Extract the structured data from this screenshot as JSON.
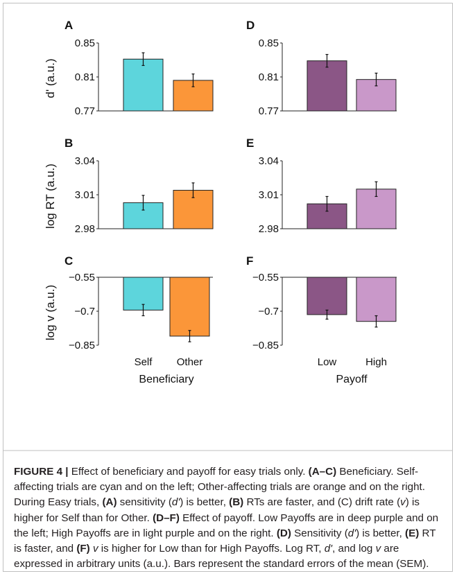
{
  "chart_data": [
    {
      "panel": "A",
      "type": "bar",
      "ylabel": "d' (a.u.)",
      "yticks": [
        "0.85",
        "0.81",
        "0.77"
      ],
      "ylim": [
        0.77,
        0.85
      ],
      "categories": [
        "Self",
        "Other"
      ],
      "values": [
        0.831,
        0.806
      ],
      "errors": [
        0.0075,
        0.0075
      ],
      "colors": [
        "#5dd5dc",
        "#fb9639"
      ]
    },
    {
      "panel": "B",
      "type": "bar",
      "ylabel": "log RT (a.u.)",
      "yticks": [
        "3.04",
        "3.01",
        "2.98"
      ],
      "ylim": [
        2.98,
        3.04
      ],
      "categories": [
        "Self",
        "Other"
      ],
      "values": [
        3.003,
        3.014
      ],
      "errors": [
        0.0065,
        0.0065
      ],
      "colors": [
        "#5dd5dc",
        "#fb9639"
      ]
    },
    {
      "panel": "C",
      "type": "bar",
      "ylabel": "log v (a.u.)",
      "yticks": [
        "−0.55",
        "−0.7",
        "−0.85"
      ],
      "ylim": [
        -0.85,
        -0.55
      ],
      "categories": [
        "Self",
        "Other"
      ],
      "values": [
        -0.695,
        -0.81
      ],
      "errors": [
        0.025,
        0.025
      ],
      "colors": [
        "#5dd5dc",
        "#fb9639"
      ],
      "xticklabels": [
        "Self",
        "Other"
      ],
      "xlabel": "Beneficiary"
    },
    {
      "panel": "D",
      "type": "bar",
      "ylabel": "",
      "yticks": [
        "0.85",
        "0.81",
        "0.77"
      ],
      "ylim": [
        0.77,
        0.85
      ],
      "categories": [
        "Low",
        "High"
      ],
      "values": [
        0.829,
        0.807
      ],
      "errors": [
        0.0075,
        0.0075
      ],
      "colors": [
        "#8b5686",
        "#c998c9"
      ]
    },
    {
      "panel": "E",
      "type": "bar",
      "ylabel": "",
      "yticks": [
        "3.04",
        "3.01",
        "2.98"
      ],
      "ylim": [
        2.98,
        3.04
      ],
      "categories": [
        "Low",
        "High"
      ],
      "values": [
        3.002,
        3.015
      ],
      "errors": [
        0.0065,
        0.0065
      ],
      "colors": [
        "#8b5686",
        "#c998c9"
      ]
    },
    {
      "panel": "F",
      "type": "bar",
      "ylabel": "",
      "yticks": [
        "−0.55",
        "−0.7",
        "−0.85"
      ],
      "ylim": [
        -0.85,
        -0.55
      ],
      "categories": [
        "Low",
        "High"
      ],
      "values": [
        -0.715,
        -0.745
      ],
      "errors": [
        0.02,
        0.025
      ],
      "colors": [
        "#8b5686",
        "#c998c9"
      ],
      "xticklabels": [
        "Low",
        "High"
      ],
      "xlabel": "Payoff"
    }
  ],
  "caption": {
    "figure_label": "FIGURE 4 |",
    "s01": " Effect of beneficiary and payoff for easy trials only. ",
    "s02": "(A–C)",
    "s03": " Beneficiary. Self-affecting trials are cyan and on the left; Other-affecting trials are orange and on the right. During Easy trials, ",
    "s04": "(A)",
    "s05": " sensitivity (",
    "s06": "d'",
    "s07": ") is better, ",
    "s08": "(B)",
    "s09": " RTs are faster, and (C) drift rate (",
    "s10": "v",
    "s11": ") is higher for Self than for Other. ",
    "s12": "(D–F)",
    "s13": " Effect of payoff. Low Payoffs are in deep purple and on the left; High Payoffs are in light purple and on the right. ",
    "s14": "(D)",
    "s15": " Sensitivity (",
    "s16": "d'",
    "s17": ") is better, ",
    "s18": "(E)",
    "s19": " RT is faster, and ",
    "s20": "(F)",
    "s21": " ",
    "s22": "v",
    "s23": " is higher for Low than for High Payoffs. Log RT, ",
    "s24": "d'",
    "s25": ", and log ",
    "s26": "v",
    "s27": " are expressed in arbitrary units (a.u.). Bars represent the standard errors of the mean (SEM)."
  }
}
